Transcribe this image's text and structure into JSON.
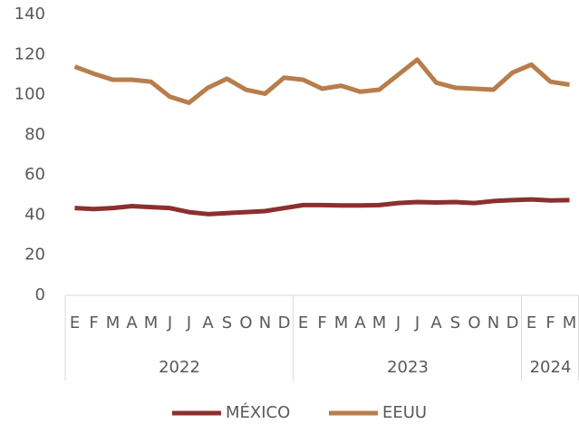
{
  "chart_data": {
    "type": "line",
    "categories": [
      "E",
      "F",
      "M",
      "A",
      "M",
      "J",
      "J",
      "A",
      "S",
      "O",
      "N",
      "D",
      "E",
      "F",
      "M",
      "A",
      "M",
      "J",
      "J",
      "A",
      "S",
      "O",
      "N",
      "D",
      "E",
      "F",
      "M"
    ],
    "groups": [
      {
        "label": "2022",
        "count": 12
      },
      {
        "label": "2023",
        "count": 12
      },
      {
        "label": "2024",
        "count": 3
      }
    ],
    "series": [
      {
        "name": "MÉXICO",
        "color": "#8b2f2f",
        "values": [
          43.5,
          43,
          43.5,
          44.5,
          44,
          43.5,
          41.5,
          40.5,
          41,
          41.5,
          42,
          43.5,
          45,
          45,
          44.8,
          44.8,
          45,
          46,
          46.5,
          46.3,
          46.5,
          46,
          47,
          47.5,
          47.8,
          47.3,
          47.5
        ]
      },
      {
        "name": "EEUU",
        "color": "#b87d4b",
        "values": [
          114,
          110.5,
          107.5,
          107.5,
          106.5,
          99,
          96,
          103.5,
          108,
          102.5,
          100.5,
          108.5,
          107.5,
          103,
          104.5,
          101.5,
          102.5,
          110,
          117.5,
          106,
          103.5,
          103,
          102.5,
          111,
          115,
          106.5,
          105
        ]
      }
    ],
    "ylim": [
      0,
      140
    ],
    "yticks": [
      0,
      20,
      40,
      60,
      80,
      100,
      120,
      140
    ],
    "grid": false,
    "legend": "bottom"
  }
}
